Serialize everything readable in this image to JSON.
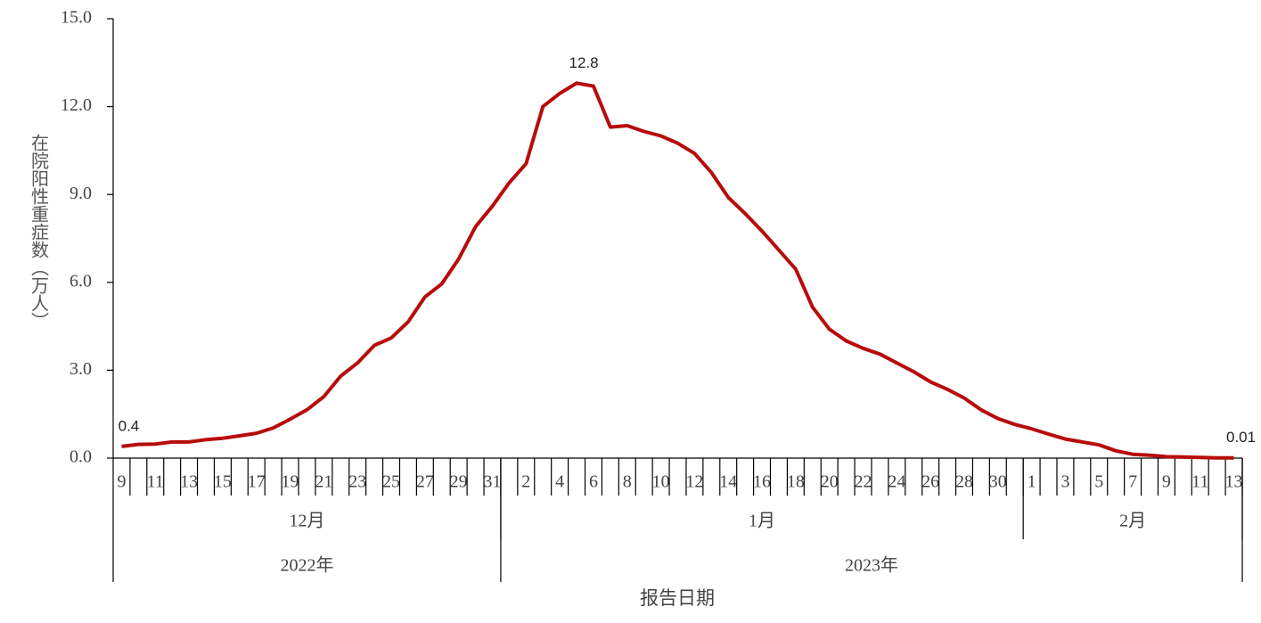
{
  "chart_data": {
    "type": "line",
    "y_label": "在院阳性重症数（万人）",
    "x_label": "报告日期",
    "color": "#b70c0c",
    "ylim": [
      0,
      15
    ],
    "yticks": [
      {
        "value": 0,
        "label": "0.0"
      },
      {
        "value": 3,
        "label": "3.0"
      },
      {
        "value": 6,
        "label": "6.0"
      },
      {
        "value": 9,
        "label": "9.0"
      },
      {
        "value": 12,
        "label": "12.0"
      },
      {
        "value": 15,
        "label": "15.0"
      }
    ],
    "years": [
      {
        "label": "2022年",
        "months": [
          {
            "label": "12月",
            "days": [
              "9",
              null,
              "11",
              null,
              "13",
              null,
              "15",
              null,
              "17",
              null,
              "19",
              null,
              "21",
              null,
              "23",
              null,
              "25",
              null,
              "27",
              null,
              "29",
              null,
              "31"
            ]
          }
        ]
      },
      {
        "label": "2023年",
        "months": [
          {
            "label": "1月",
            "days": [
              null,
              "2",
              null,
              "4",
              null,
              "6",
              null,
              "8",
              null,
              "10",
              null,
              "12",
              null,
              "14",
              null,
              "16",
              null,
              "18",
              null,
              "20",
              null,
              "22",
              null,
              "24",
              null,
              "26",
              null,
              "28",
              null,
              "30",
              null
            ]
          },
          {
            "label": "2月",
            "days": [
              "1",
              null,
              "3",
              null,
              "5",
              null,
              "7",
              null,
              "9",
              null,
              "11",
              null,
              "13"
            ]
          }
        ]
      }
    ],
    "values": [
      0.4,
      0.47,
      0.48,
      0.55,
      0.55,
      0.63,
      0.68,
      0.76,
      0.85,
      1.03,
      1.33,
      1.65,
      2.1,
      2.8,
      3.25,
      3.85,
      4.1,
      4.65,
      5.5,
      5.95,
      6.8,
      7.9,
      8.6,
      9.4,
      10.05,
      12.0,
      12.45,
      12.8,
      12.7,
      11.3,
      11.35,
      11.15,
      11.0,
      10.75,
      10.4,
      9.75,
      8.9,
      8.35,
      7.75,
      7.1,
      6.45,
      5.15,
      4.4,
      4.0,
      3.75,
      3.55,
      3.25,
      2.95,
      2.6,
      2.35,
      2.05,
      1.65,
      1.35,
      1.15,
      1.0,
      0.82,
      0.65,
      0.55,
      0.45,
      0.25,
      0.13,
      0.1,
      0.05,
      0.04,
      0.02,
      0.01,
      0.01
    ],
    "value_labels": [
      "0.4",
      null,
      null,
      null,
      null,
      null,
      null,
      null,
      null,
      null,
      null,
      null,
      null,
      null,
      null,
      null,
      null,
      null,
      null,
      null,
      null,
      null,
      null,
      null,
      null,
      null,
      null,
      "12.8",
      null,
      null,
      null,
      null,
      null,
      null,
      null,
      null,
      null,
      null,
      null,
      null,
      null,
      null,
      null,
      null,
      null,
      null,
      null,
      null,
      null,
      null,
      null,
      null,
      null,
      null,
      null,
      null,
      null,
      null,
      null,
      null,
      null,
      null,
      null,
      null,
      null,
      null,
      "0.01"
    ]
  }
}
